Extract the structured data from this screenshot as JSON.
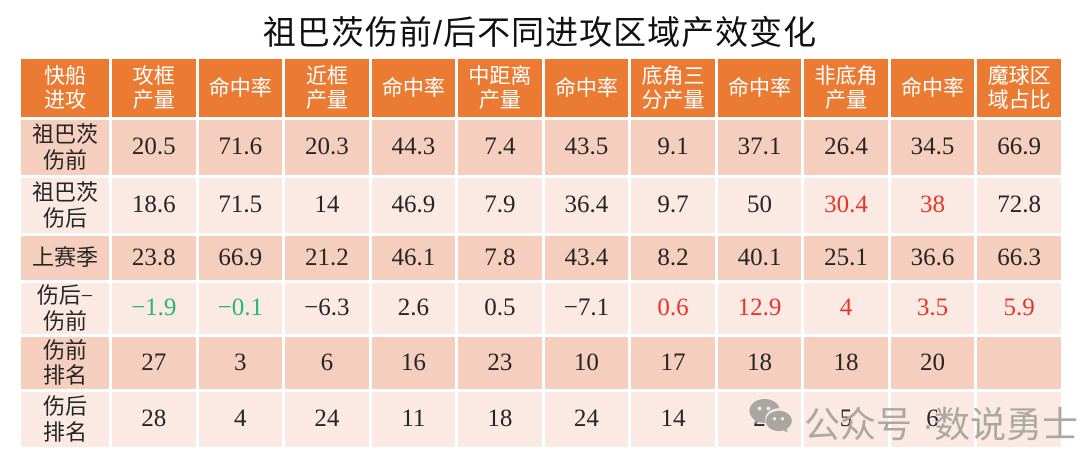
{
  "page": {
    "title": "祖巴茨伤前/后不同进攻区域产效变化"
  },
  "watermark": {
    "icon": "wechat-icon",
    "text": "公众号 ·数说勇士"
  },
  "colors": {
    "header_bg": "#EB7B33",
    "row_odd_bg": "#F5CEBD",
    "row_even_bg": "#FBEAE3",
    "negative_green": "#23B973",
    "highlight_red": "#E93528",
    "body_text": "#262626",
    "watermark_gray": "#ADA7A2"
  },
  "chart_data": {
    "type": "table",
    "title": "祖巴茨伤前/后不同进攻区域产效变化",
    "columns": [
      "快船\n进攻",
      "攻框\n产量",
      "命中率",
      "近框\n产量",
      "命中率",
      "中距离\n产量",
      "命中率",
      "底角三\n分产量",
      "命中率",
      "非底角\n产量",
      "命中率",
      "魔球区\n域占比"
    ],
    "rows": [
      {
        "label": "祖巴茨\n伤前",
        "values": [
          "20.5",
          "71.6",
          "20.3",
          "44.3",
          "7.4",
          "43.5",
          "9.1",
          "37.1",
          "26.4",
          "34.5",
          "66.9"
        ],
        "colors": [
          "",
          "",
          "",
          "",
          "",
          "",
          "",
          "",
          "",
          "",
          ""
        ]
      },
      {
        "label": "祖巴茨\n伤后",
        "values": [
          "18.6",
          "71.5",
          "14",
          "46.9",
          "7.9",
          "36.4",
          "9.7",
          "50",
          "30.4",
          "38",
          "72.8"
        ],
        "colors": [
          "",
          "",
          "",
          "",
          "",
          "",
          "",
          "",
          "red",
          "red",
          ""
        ]
      },
      {
        "label": "上赛季",
        "values": [
          "23.8",
          "66.9",
          "21.2",
          "46.1",
          "7.8",
          "43.4",
          "8.2",
          "40.1",
          "25.1",
          "36.6",
          "66.3"
        ],
        "colors": [
          "",
          "",
          "",
          "",
          "",
          "",
          "",
          "",
          "",
          "",
          ""
        ]
      },
      {
        "label": "伤后−\n伤前",
        "values": [
          "−1.9",
          "−0.1",
          "−6.3",
          "2.6",
          "0.5",
          "−7.1",
          "0.6",
          "12.9",
          "4",
          "3.5",
          "5.9"
        ],
        "colors": [
          "green",
          "green",
          "",
          "",
          "",
          "",
          "red",
          "red",
          "red",
          "red",
          "red"
        ]
      },
      {
        "label": "伤前\n排名",
        "values": [
          "27",
          "3",
          "6",
          "16",
          "23",
          "10",
          "17",
          "18",
          "18",
          "20",
          ""
        ],
        "colors": [
          "",
          "",
          "",
          "",
          "",
          "",
          "",
          "",
          "",
          "",
          ""
        ]
      },
      {
        "label": "伤后\n排名",
        "values": [
          "28",
          "4",
          "24",
          "11",
          "18",
          "24",
          "14",
          "2",
          "5",
          "6",
          ""
        ],
        "colors": [
          "",
          "",
          "",
          "",
          "",
          "",
          "",
          "",
          "",
          "",
          ""
        ]
      }
    ]
  }
}
